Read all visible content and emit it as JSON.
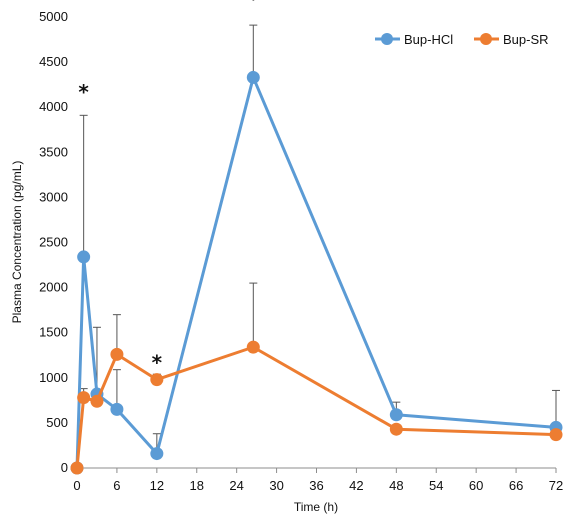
{
  "chart_data": {
    "type": "line",
    "xlabel": "Time (h)",
    "ylabel": "Plasma Concentration (pg/mL)",
    "xlim": [
      0,
      72
    ],
    "ylim": [
      0,
      5000
    ],
    "x_ticks": [
      0,
      6,
      12,
      18,
      24,
      30,
      36,
      42,
      48,
      54,
      60,
      66,
      72
    ],
    "y_ticks": [
      0,
      500,
      1000,
      1500,
      2000,
      2500,
      3000,
      3500,
      4000,
      4500,
      5000
    ],
    "grid": false,
    "legend_position": "top-right",
    "series": [
      {
        "name": "Bup-HCl",
        "color": "#5b9bd5",
        "x": [
          0,
          1,
          3,
          6,
          12,
          26.5,
          48,
          72
        ],
        "values": [
          0,
          2340,
          820,
          650,
          160,
          4330,
          590,
          450
        ],
        "error_upper": [
          0,
          1570,
          740,
          440,
          220,
          580,
          140,
          410
        ]
      },
      {
        "name": "Bup-SR",
        "color": "#ed7d31",
        "x": [
          0,
          1,
          3,
          6,
          12,
          26.5,
          48,
          72
        ],
        "values": [
          0,
          780,
          740,
          1260,
          980,
          1340,
          430,
          370
        ],
        "error_upper": [
          0,
          100,
          0,
          440,
          60,
          710,
          0,
          0
        ]
      }
    ],
    "annotations": [
      {
        "text": "*",
        "x": 1,
        "y": 4180
      },
      {
        "text": "*",
        "x": 12,
        "y": 1180
      },
      {
        "text": "*",
        "x": 26.5,
        "y": 5210
      }
    ]
  }
}
